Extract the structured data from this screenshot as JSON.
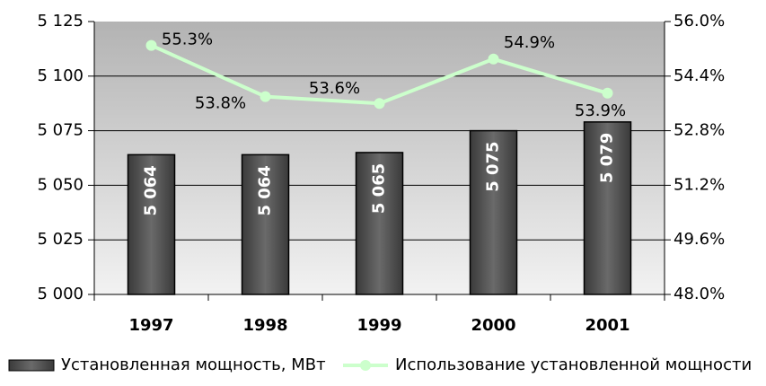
{
  "chart_data": {
    "type": "bar",
    "categories": [
      "1997",
      "1998",
      "1999",
      "2000",
      "2001"
    ],
    "series": [
      {
        "name": "Установленная мощность, МВт",
        "type": "bar",
        "color": "#4d4d4d",
        "values": [
          5064,
          5064,
          5065,
          5075,
          5079
        ],
        "value_labels": [
          "5 064",
          "5 064",
          "5 065",
          "5 075",
          "5 079"
        ]
      },
      {
        "name": "Использование установленной мощности",
        "type": "line",
        "axis": "y2",
        "color": "#ccffcc",
        "values": [
          55.3,
          53.8,
          53.6,
          54.9,
          53.9
        ],
        "value_labels": [
          "55.3%",
          "53.8%",
          "53.6%",
          "54.9%",
          "53.9%"
        ]
      }
    ],
    "ylim": [
      5000,
      5125
    ],
    "yticks": [
      {
        "value": 5000,
        "label": "5 000"
      },
      {
        "value": 5025,
        "label": "5 025"
      },
      {
        "value": 5050,
        "label": "5 050"
      },
      {
        "value": 5075,
        "label": "5 075"
      },
      {
        "value": 5100,
        "label": "5 100"
      },
      {
        "value": 5125,
        "label": "5 125"
      }
    ],
    "y2lim": [
      48.0,
      56.0
    ],
    "y2ticks": [
      {
        "value": 48.0,
        "label": "48.0%"
      },
      {
        "value": 49.6,
        "label": "49.6%"
      },
      {
        "value": 51.2,
        "label": "51.2%"
      },
      {
        "value": 52.8,
        "label": "52.8%"
      },
      {
        "value": 54.4,
        "label": "54.4%"
      },
      {
        "value": 56.0,
        "label": "56.0%"
      }
    ],
    "grid": true,
    "legend": "bottom"
  }
}
